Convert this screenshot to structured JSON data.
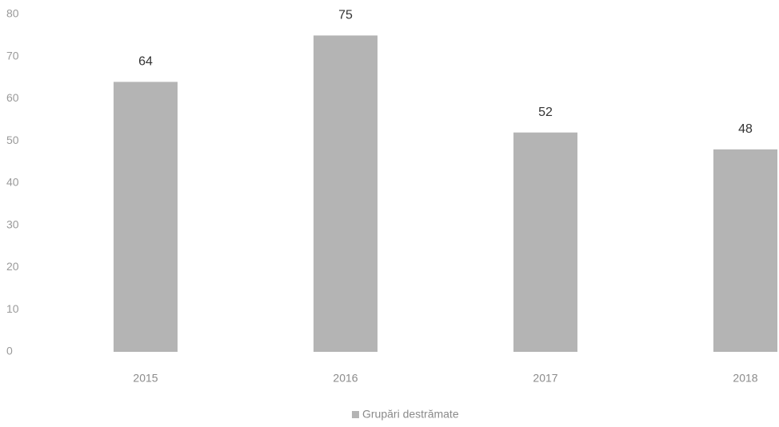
{
  "chart_data": {
    "type": "bar",
    "categories": [
      "2015",
      "2016",
      "2017",
      "2018"
    ],
    "series": [
      {
        "name": "Grupări destrămate",
        "color": "#b4b4b4",
        "values": [
          64,
          75,
          52,
          48
        ]
      }
    ],
    "ylim": [
      0,
      80
    ],
    "yticks": [
      0,
      10,
      20,
      30,
      40,
      50,
      60,
      70,
      80
    ],
    "legend": "bottom"
  }
}
